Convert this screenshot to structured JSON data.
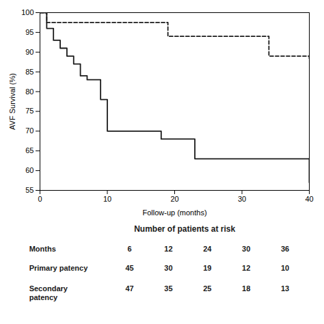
{
  "chart_data": {
    "type": "line",
    "xlabel": "Follow-up (months)",
    "ylabel": "AVF Survival (%)",
    "xlim": [
      0,
      40
    ],
    "ylim": [
      55,
      100
    ],
    "xticks": [
      0,
      10,
      20,
      30,
      40
    ],
    "yticks": [
      55,
      60,
      65,
      70,
      75,
      80,
      85,
      90,
      95,
      100
    ],
    "grid": false,
    "series": [
      {
        "color": "#1a1a1a",
        "line_style": "solid",
        "x": [
          0,
          1,
          2,
          3,
          4,
          5,
          6,
          7,
          8,
          9,
          10,
          13,
          18,
          23,
          33,
          40,
          40
        ],
        "values": [
          100,
          96,
          93,
          91,
          89,
          87,
          84,
          83,
          83,
          78,
          70,
          70,
          68,
          63,
          63,
          63,
          57
        ]
      },
      {
        "color": "#1a1a1a",
        "line_style": "dashed",
        "x": [
          0,
          1,
          18,
          19,
          33,
          34,
          40,
          40
        ],
        "values": [
          100,
          97.5,
          97.5,
          94,
          94,
          89,
          89,
          88
        ]
      }
    ],
    "table": {
      "title": "Number of patients at risk",
      "header": {
        "label": "Months",
        "values": [
          6,
          12,
          24,
          30,
          36
        ]
      },
      "rows": [
        {
          "label": "Primary patency",
          "values": [
            45,
            30,
            19,
            12,
            10
          ]
        },
        {
          "label": "Secondary\npatency",
          "values": [
            47,
            35,
            25,
            18,
            13
          ]
        }
      ]
    }
  }
}
